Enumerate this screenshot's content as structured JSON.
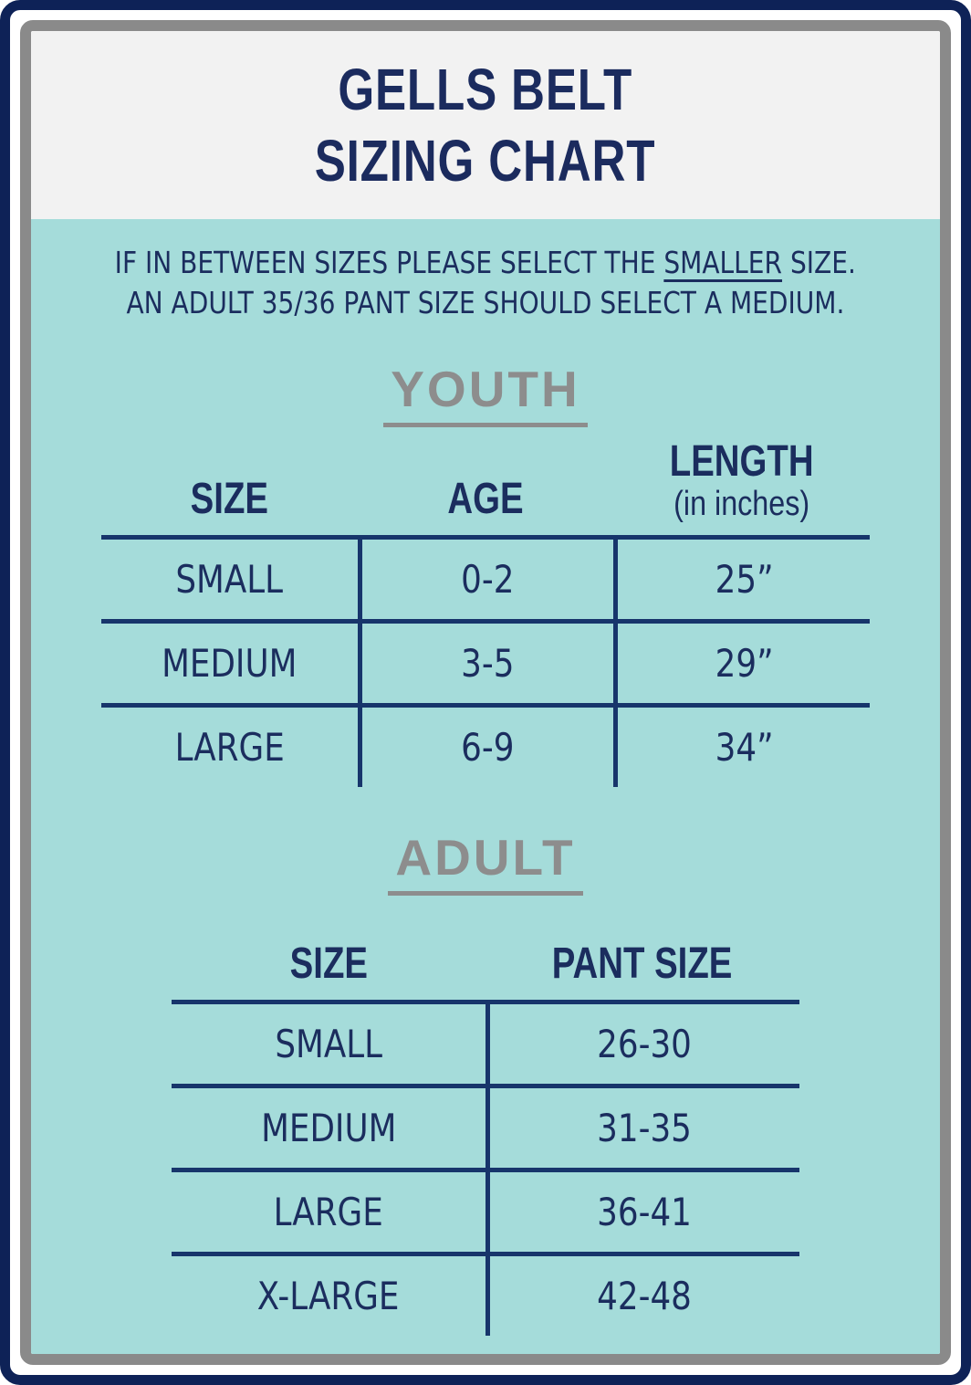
{
  "header": {
    "title_line1": "GELLS BELT",
    "title_line2": "SIZING CHART"
  },
  "note": {
    "line1_pre": "IF IN BETWEEN SIZES PLEASE SELECT THE ",
    "line1_underline": "SMALLER",
    "line1_post": " SIZE.",
    "line2": "AN ADULT 35/36 PANT SIZE SHOULD SELECT A MEDIUM."
  },
  "youth": {
    "heading": "YOUTH",
    "columns": [
      "SIZE",
      "AGE",
      "LENGTH"
    ],
    "length_subnote": "(in inches)",
    "rows": [
      {
        "size": "SMALL",
        "age": "0-2",
        "length": "25”"
      },
      {
        "size": "MEDIUM",
        "age": "3-5",
        "length": "29”"
      },
      {
        "size": "LARGE",
        "age": "6-9",
        "length": "34”"
      }
    ]
  },
  "adult": {
    "heading": "ADULT",
    "columns": [
      "SIZE",
      "PANT SIZE"
    ],
    "rows": [
      {
        "size": "SMALL",
        "pant_size": "26-30"
      },
      {
        "size": "MEDIUM",
        "pant_size": "31-35"
      },
      {
        "size": "LARGE",
        "pant_size": "36-41"
      },
      {
        "size": "X-LARGE",
        "pant_size": "42-48"
      }
    ]
  },
  "colors": {
    "outer_border_navy": "#0e2257",
    "inner_border_gray": "#8a8a8a",
    "header_background": "#f2f2f2",
    "body_background_teal": "#a5dcda",
    "text_navy": "#1b2d5e",
    "table_line_navy": "#17356b",
    "section_heading_gray": "#8d8d8d"
  },
  "chart_data": [
    {
      "type": "table",
      "title": "YOUTH",
      "columns": [
        "SIZE",
        "AGE",
        "LENGTH (in inches)"
      ],
      "rows": [
        [
          "SMALL",
          "0-2",
          "25”"
        ],
        [
          "MEDIUM",
          "3-5",
          "29”"
        ],
        [
          "LARGE",
          "6-9",
          "34”"
        ]
      ]
    },
    {
      "type": "table",
      "title": "ADULT",
      "columns": [
        "SIZE",
        "PANT SIZE"
      ],
      "rows": [
        [
          "SMALL",
          "26-30"
        ],
        [
          "MEDIUM",
          "31-35"
        ],
        [
          "LARGE",
          "36-41"
        ],
        [
          "X-LARGE",
          "42-48"
        ]
      ]
    }
  ]
}
